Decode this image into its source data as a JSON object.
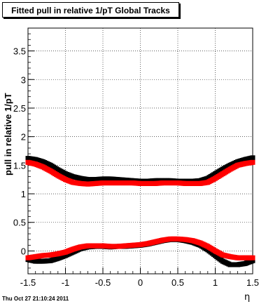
{
  "chart_data": {
    "type": "scatter",
    "title": "Fitted pull in relative 1/pT  Global Tracks",
    "xlabel": "η",
    "ylabel": "pull in relative 1/pT",
    "xlim": [
      -1.5,
      1.5
    ],
    "ylim": [
      -0.4,
      3.9
    ],
    "grid": true,
    "x_ticks": [
      "-1.5",
      "-1",
      "-0.5",
      "0",
      "0.5",
      "1",
      "1.5"
    ],
    "y_ticks": [
      "0",
      "0.5",
      "1",
      "1.5",
      "2",
      "2.5",
      "3",
      "3.5"
    ],
    "colors": {
      "series1": "#000000",
      "series2": "#ff0000"
    },
    "series": [
      {
        "marker": "square",
        "color": "#000000",
        "x": [
          -1.5,
          -1.4,
          -1.3,
          -1.2,
          -1.1,
          -1.0,
          -0.9,
          -0.8,
          -0.7,
          -0.6,
          -0.5,
          -0.4,
          -0.3,
          -0.2,
          -0.1,
          0.0,
          0.1,
          0.2,
          0.3,
          0.4,
          0.5,
          0.6,
          0.7,
          0.8,
          0.9,
          1.0,
          1.1,
          1.2,
          1.3,
          1.4,
          1.5
        ],
        "y": [
          1.62,
          1.6,
          1.56,
          1.5,
          1.42,
          1.35,
          1.3,
          1.27,
          1.25,
          1.25,
          1.26,
          1.26,
          1.25,
          1.24,
          1.23,
          1.22,
          1.22,
          1.23,
          1.23,
          1.23,
          1.22,
          1.22,
          1.22,
          1.23,
          1.27,
          1.35,
          1.43,
          1.5,
          1.56,
          1.6,
          1.63
        ]
      },
      {
        "marker": "square",
        "color": "#ff0000",
        "x": [
          -1.5,
          -1.4,
          -1.3,
          -1.2,
          -1.1,
          -1.0,
          -0.9,
          -0.8,
          -0.7,
          -0.6,
          -0.5,
          -0.4,
          -0.3,
          -0.2,
          -0.1,
          0.0,
          0.1,
          0.2,
          0.3,
          0.4,
          0.5,
          0.6,
          0.7,
          0.8,
          0.9,
          1.0,
          1.1,
          1.2,
          1.3,
          1.4,
          1.5
        ],
        "y": [
          1.55,
          1.52,
          1.47,
          1.4,
          1.32,
          1.25,
          1.2,
          1.18,
          1.17,
          1.18,
          1.19,
          1.19,
          1.19,
          1.19,
          1.19,
          1.18,
          1.18,
          1.18,
          1.19,
          1.19,
          1.19,
          1.18,
          1.18,
          1.18,
          1.2,
          1.27,
          1.35,
          1.43,
          1.5,
          1.53,
          1.55
        ]
      },
      {
        "marker": "square",
        "color": "#000000",
        "x": [
          -1.5,
          -1.4,
          -1.3,
          -1.2,
          -1.1,
          -1.0,
          -0.9,
          -0.8,
          -0.7,
          -0.6,
          -0.5,
          -0.4,
          -0.3,
          -0.2,
          -0.1,
          0.0,
          0.1,
          0.2,
          0.3,
          0.4,
          0.5,
          0.6,
          0.7,
          0.8,
          0.9,
          1.0,
          1.1,
          1.2,
          1.3,
          1.4,
          1.5
        ],
        "y": [
          -0.15,
          -0.18,
          -0.18,
          -0.17,
          -0.13,
          -0.08,
          -0.02,
          0.04,
          0.07,
          0.08,
          0.08,
          0.07,
          0.08,
          0.08,
          0.09,
          0.1,
          0.12,
          0.15,
          0.18,
          0.2,
          0.2,
          0.18,
          0.15,
          0.1,
          0.02,
          -0.08,
          -0.18,
          -0.24,
          -0.24,
          -0.22,
          -0.17
        ]
      },
      {
        "marker": "square",
        "color": "#ff0000",
        "x": [
          -1.5,
          -1.4,
          -1.3,
          -1.2,
          -1.1,
          -1.0,
          -0.9,
          -0.8,
          -0.7,
          -0.6,
          -0.5,
          -0.4,
          -0.3,
          -0.2,
          -0.1,
          0.0,
          0.1,
          0.2,
          0.3,
          0.4,
          0.5,
          0.6,
          0.7,
          0.8,
          0.9,
          1.0,
          1.1,
          1.2,
          1.3,
          1.4,
          1.5
        ],
        "y": [
          -0.12,
          -0.1,
          -0.08,
          -0.07,
          -0.05,
          -0.02,
          0.03,
          0.07,
          0.09,
          0.09,
          0.09,
          0.08,
          0.08,
          0.09,
          0.1,
          0.11,
          0.13,
          0.16,
          0.19,
          0.21,
          0.21,
          0.2,
          0.18,
          0.14,
          0.08,
          0.0,
          -0.07,
          -0.1,
          -0.12,
          -0.12,
          -0.12
        ]
      }
    ]
  },
  "footer": {
    "timestamp": "Thu Oct 27 21:10:24 2011"
  }
}
